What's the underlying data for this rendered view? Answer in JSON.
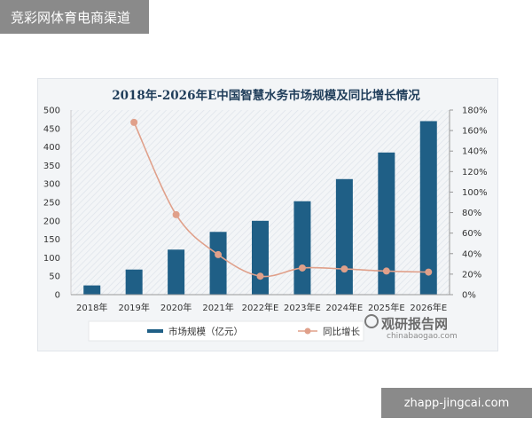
{
  "banner_top": "竞彩网体育电商渠道",
  "banner_bottom": "zhapp-jingcai.com",
  "watermark": {
    "main": "观研报告网",
    "sub": "chinabaogao.com"
  },
  "chart_data": {
    "type": "bar",
    "title": "2018年-2026年E中国智慧水务市场规模及同比增长情况",
    "categories": [
      "2018年",
      "2019年",
      "2020年",
      "2021年",
      "2022年E",
      "2023年E",
      "2024年E",
      "2025年E",
      "2026年E"
    ],
    "series": [
      {
        "name": "市场规模（亿元）",
        "type": "bar",
        "axis": "left",
        "color": "#1f5f86",
        "values": [
          25,
          68,
          122,
          170,
          200,
          253,
          313,
          385,
          470
        ]
      },
      {
        "name": "同比增长",
        "type": "line",
        "axis": "right",
        "color": "#e0a08a",
        "values": [
          null,
          1.68,
          0.78,
          0.39,
          0.18,
          0.26,
          0.25,
          0.23,
          0.22
        ]
      }
    ],
    "yleft": {
      "min": 0,
      "max": 500,
      "step": 50,
      "ticks": [
        "0",
        "50",
        "100",
        "150",
        "200",
        "250",
        "300",
        "350",
        "400",
        "450",
        "500"
      ]
    },
    "yright": {
      "min": 0,
      "max": 1.8,
      "step": 0.2,
      "ticks": [
        "0%",
        "20%",
        "40%",
        "60%",
        "80%",
        "100%",
        "120%",
        "140%",
        "160%",
        "180%"
      ]
    },
    "legend": {
      "position": "bottom"
    },
    "grid": false
  }
}
